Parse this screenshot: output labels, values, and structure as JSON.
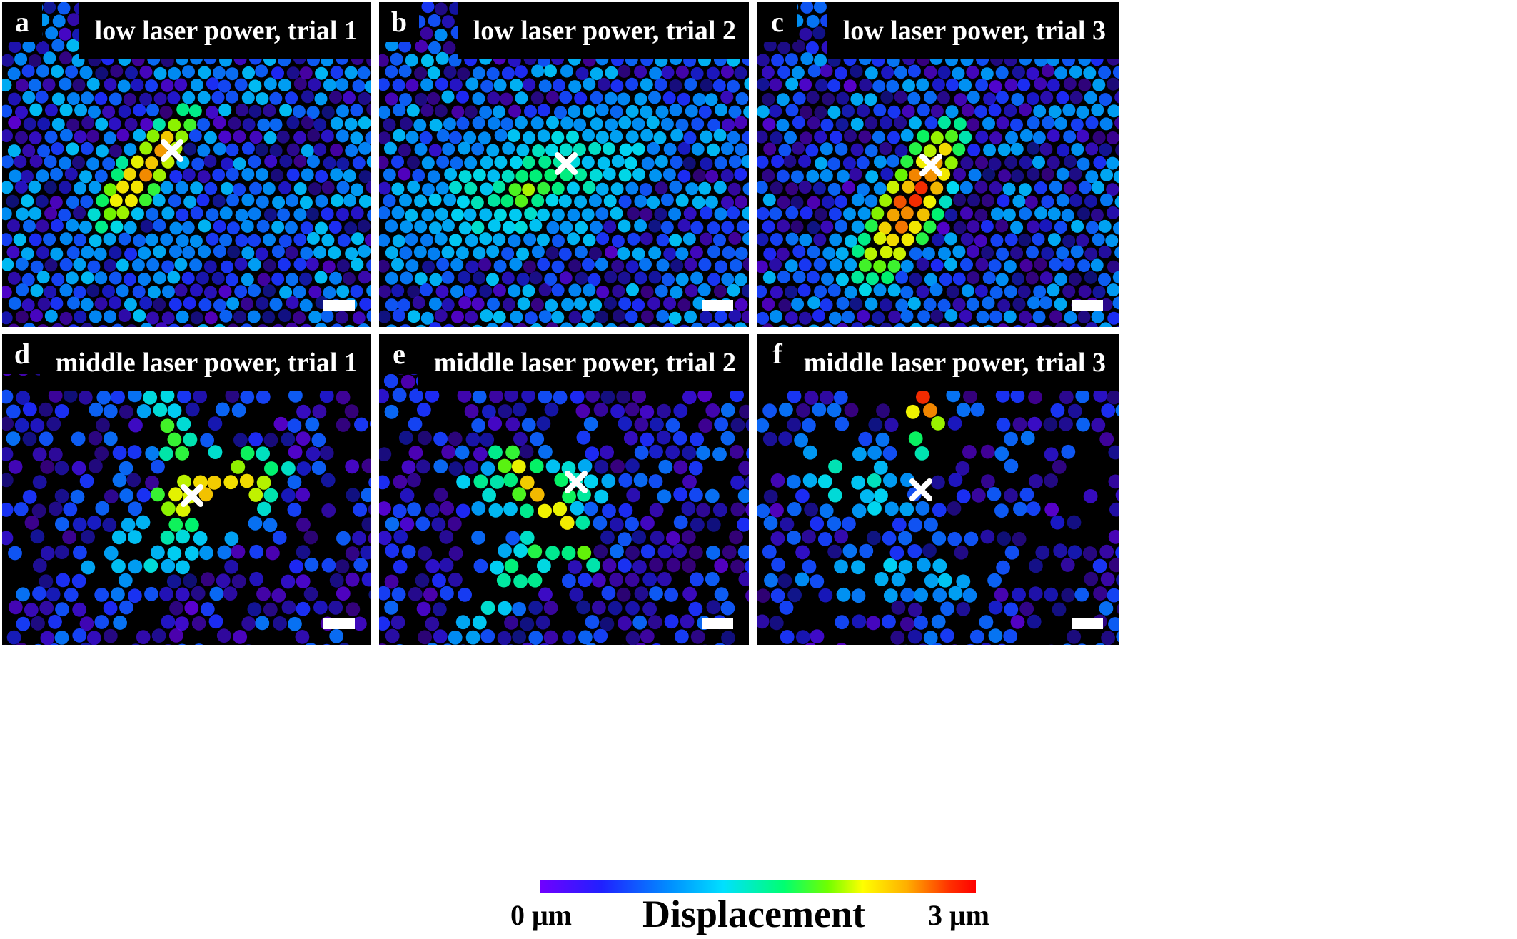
{
  "panels": [
    {
      "letter": "a",
      "title": "low laser power, trial 1"
    },
    {
      "letter": "b",
      "title": "low laser power, trial 2"
    },
    {
      "letter": "c",
      "title": "low laser power, trial 3"
    },
    {
      "letter": "d",
      "title": "middle laser power, trial 1"
    },
    {
      "letter": "e",
      "title": "middle laser power, trial 2"
    },
    {
      "letter": "f",
      "title": "middle laser power, trial 3"
    }
  ],
  "colorbar": {
    "min_label": "0 μm",
    "max_label": "3 μm",
    "title": "Displacement",
    "colors": [
      "#7000ff",
      "#2020ff",
      "#0090ff",
      "#00e0ff",
      "#00ff70",
      "#70ff00",
      "#ffff00",
      "#ffb000",
      "#ff3000",
      "#ff0000"
    ]
  },
  "colors": {
    "background": "#000000",
    "marker": "#ffffff",
    "scale_bar": "#ffffff"
  },
  "icons": {
    "marker": "x-mark-icon",
    "scale": "scale-bar"
  }
}
